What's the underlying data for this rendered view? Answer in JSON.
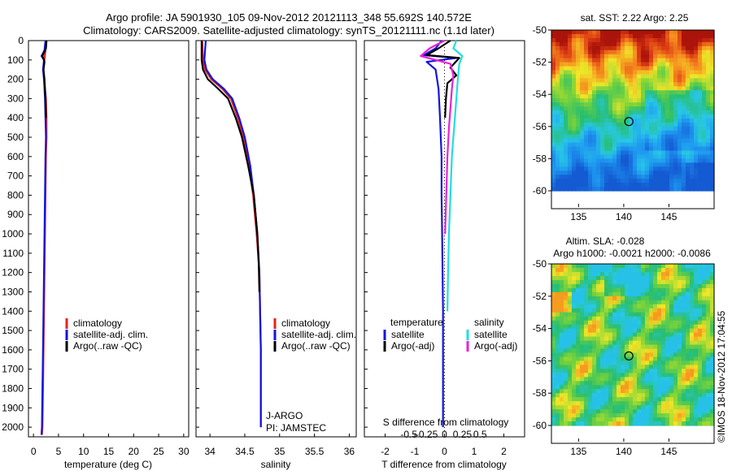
{
  "header": {
    "line1": "Argo profile: JA 5901930_105 09-Nov-2012 20121113_348 55.692S 140.572E",
    "line2": "Climatology: CARS2009. Satellite-adjusted climatology: synTS_20121111.nc (1.1d later)"
  },
  "colors": {
    "climatology": "#e8221a",
    "satellite": "#1414dc",
    "argo": "#000000",
    "sal_satellite": "#22dde0",
    "sal_argo": "#e822d8"
  },
  "depth_axis": {
    "ylim": [
      2050,
      0
    ],
    "ticks": [
      "0",
      "100",
      "200",
      "300",
      "400",
      "500",
      "600",
      "700",
      "800",
      "900",
      "1000",
      "1100",
      "1200",
      "1300",
      "1400",
      "1500",
      "1600",
      "1700",
      "1800",
      "1900",
      "2000"
    ]
  },
  "chart_data": [
    {
      "type": "line",
      "xlabel": "temperature (deg C)",
      "xlim": [
        -1,
        31
      ],
      "xticks": [
        "0",
        "5",
        "10",
        "15",
        "20",
        "25",
        "30"
      ],
      "legend": {
        "position": "lower-middle",
        "entries": [
          {
            "label": "climatology",
            "color_key": "climatology"
          },
          {
            "label": "satellite-adj. clim.",
            "color_key": "satellite"
          },
          {
            "label": "Argo(..raw -QC)",
            "color_key": "argo"
          }
        ]
      },
      "series": [
        {
          "color_key": "climatology",
          "x": [
            2.5,
            2.4,
            2.2,
            2.0,
            2.1,
            2.3,
            2.5,
            2.6,
            2.6,
            2.5,
            2.4,
            2.3,
            2.2,
            2.1,
            2.0,
            1.9,
            1.8,
            1.7
          ],
          "y": [
            0,
            50,
            100,
            150,
            200,
            250,
            300,
            400,
            500,
            600,
            800,
            1000,
            1200,
            1400,
            1600,
            1800,
            2000,
            2040
          ]
        },
        {
          "color_key": "satellite",
          "x": [
            2.4,
            2.2,
            1.6,
            2.1,
            1.9,
            2.1,
            2.3,
            2.4,
            2.5,
            2.4,
            2.3,
            2.2,
            2.1,
            2.0,
            1.9,
            1.8,
            1.7,
            1.6
          ],
          "y": [
            0,
            50,
            80,
            100,
            150,
            200,
            300,
            400,
            500,
            600,
            800,
            1000,
            1200,
            1400,
            1600,
            1800,
            2000,
            2040
          ]
        },
        {
          "color_key": "argo",
          "x": [
            2.6,
            2.5,
            1.8,
            2.2,
            2.0,
            2.2,
            2.4,
            2.5
          ],
          "y": [
            0,
            40,
            80,
            110,
            150,
            200,
            300,
            400
          ]
        }
      ]
    },
    {
      "type": "line",
      "xlabel": "salinity",
      "xlim": [
        33.8,
        36.1
      ],
      "xticks": [
        "34",
        "34.5",
        "35",
        "35.5",
        "36"
      ],
      "legend": {
        "position": "lower-middle",
        "entries": [
          {
            "label": "climatology",
            "color_key": "climatology"
          },
          {
            "label": "satellite-adj. clim.",
            "color_key": "satellite"
          },
          {
            "label": "Argo(..raw -QC)",
            "color_key": "argo"
          }
        ]
      },
      "annotation": [
        "J-ARGO",
        "PI: JAMSTEC"
      ],
      "series": [
        {
          "color_key": "climatology",
          "x": [
            33.89,
            33.9,
            33.93,
            34.02,
            34.18,
            34.3,
            34.4,
            34.48,
            34.56,
            34.62,
            34.67,
            34.71,
            34.72,
            34.73,
            34.73,
            34.73
          ],
          "y": [
            0,
            100,
            150,
            200,
            250,
            300,
            400,
            500,
            650,
            800,
            1000,
            1200,
            1400,
            1600,
            1800,
            2000
          ]
        },
        {
          "color_key": "satellite",
          "x": [
            33.94,
            33.92,
            33.95,
            34.04,
            34.2,
            34.32,
            34.42,
            34.5,
            34.58,
            34.63,
            34.68,
            34.71,
            34.72,
            34.73,
            34.73,
            34.73
          ],
          "y": [
            0,
            100,
            150,
            200,
            250,
            300,
            400,
            500,
            650,
            800,
            1000,
            1200,
            1400,
            1600,
            1800,
            2000
          ]
        },
        {
          "color_key": "argo",
          "x": [
            33.88,
            33.88,
            33.9,
            33.97,
            34.12,
            34.26,
            34.37,
            34.46,
            34.55,
            34.63,
            34.68,
            34.7,
            34.71
          ],
          "y": [
            0,
            100,
            150,
            200,
            250,
            300,
            400,
            500,
            650,
            800,
            1000,
            1150,
            1300
          ]
        }
      ]
    },
    {
      "type": "line",
      "xlabel": "T difference from climatology",
      "xlim": [
        -2.7,
        2.7
      ],
      "xticks": [
        "-2",
        "-1",
        "0",
        "1",
        "2"
      ],
      "secondary_xlabel": "S difference from climatology",
      "secondary_xticks": [
        "-0.5",
        "-0.25",
        "0",
        "0.25",
        "0.5"
      ],
      "legend_temperature": {
        "position": "lower-left",
        "title": "temperature",
        "entries": [
          {
            "label": "satellite",
            "color_key": "satellite"
          },
          {
            "label": "Argo(-adj)",
            "color_key": "argo"
          }
        ]
      },
      "legend_salinity": {
        "position": "lower-right",
        "title": "salinity",
        "entries": [
          {
            "label": "satellite",
            "color_key": "sal_satellite"
          },
          {
            "label": "Argo(-adj)",
            "color_key": "sal_argo"
          }
        ]
      },
      "series": [
        {
          "color_key": "satellite",
          "x": [
            -0.1,
            -0.3,
            -0.7,
            0.4,
            -0.6,
            -0.3,
            -0.2,
            -0.15,
            -0.1,
            -0.1,
            -0.08,
            -0.05,
            -0.05,
            -0.05,
            -0.05
          ],
          "y": [
            0,
            40,
            75,
            90,
            110,
            150,
            250,
            400,
            600,
            800,
            1000,
            1400,
            1700,
            1900,
            2000
          ]
        },
        {
          "color_key": "argo",
          "x": [
            0.2,
            -0.2,
            -0.6,
            0.5,
            0.2,
            0.4,
            0.1,
            0.05,
            0.02
          ],
          "y": [
            0,
            40,
            75,
            90,
            140,
            180,
            220,
            300,
            400
          ]
        },
        {
          "color_key": "sal_satellite",
          "x": [
            0.4,
            0.3,
            0.6,
            0.5,
            0.45,
            0.4,
            0.35,
            0.3,
            0.25,
            0.2,
            0.15,
            0.12,
            0.1
          ],
          "y": [
            0,
            40,
            80,
            120,
            200,
            300,
            400,
            500,
            600,
            800,
            1000,
            1200,
            1400
          ]
        },
        {
          "color_key": "sal_argo",
          "x": [
            0.0,
            -0.5,
            -0.8,
            0.2,
            0.3,
            0.25,
            0.2,
            0.15,
            0.1,
            0.06,
            0.02
          ],
          "y": [
            0,
            40,
            80,
            120,
            180,
            250,
            350,
            450,
            600,
            800,
            1000
          ]
        }
      ]
    },
    {
      "type": "heatmap",
      "title": "sat. SST: 2.22 Argo: 2.25",
      "xlim": [
        132,
        150
      ],
      "ylim": [
        -60,
        -50
      ],
      "xticks": [
        "135",
        "140",
        "145"
      ],
      "yticks": [
        "-50",
        "-52",
        "-54",
        "-56",
        "-58",
        "-60"
      ],
      "marker": {
        "lon": 140.572,
        "lat": -55.692
      }
    },
    {
      "type": "heatmap",
      "title": [
        "Altim. SLA: -0.028",
        "Argo h1000: -0.0021 h2000: -0.0086"
      ],
      "xlim": [
        132,
        150
      ],
      "ylim": [
        -60,
        -50
      ],
      "xticks": [
        "135",
        "140",
        "145"
      ],
      "yticks": [
        "-50",
        "-52",
        "-54",
        "-56",
        "-58",
        "-60"
      ],
      "marker": {
        "lon": 140.572,
        "lat": -55.692
      }
    }
  ],
  "footer": {
    "stamp": "©IMOS 18-Nov-2012 17:04:55"
  }
}
